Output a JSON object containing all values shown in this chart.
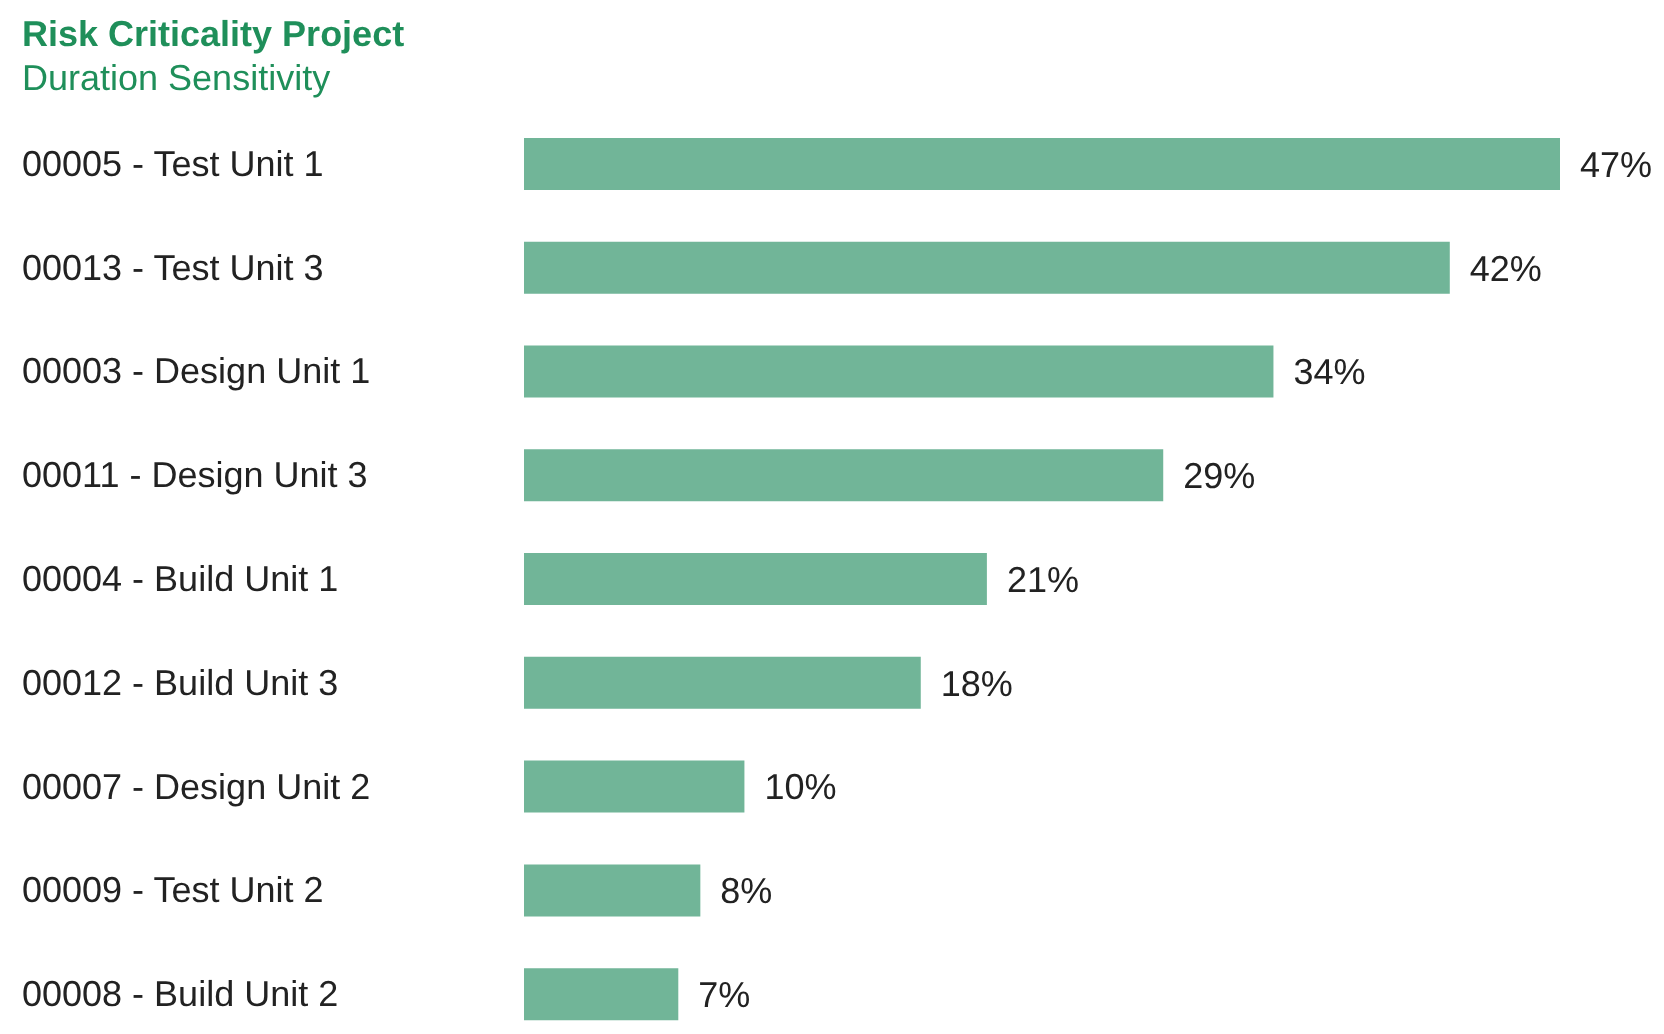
{
  "chart_data": {
    "type": "bar",
    "orientation": "horizontal",
    "title": "Risk Criticality Project",
    "subtitle": "Duration Sensitivity",
    "categories": [
      "00005 - Test Unit 1",
      "00013 - Test Unit 3",
      "00003 - Design Unit 1",
      "00011 - Design Unit 3",
      "00004 - Build Unit 1",
      "00012 - Build Unit 3",
      "00007 - Design Unit 2",
      "00009 - Test Unit 2",
      "00008 - Build Unit 2"
    ],
    "values": [
      47,
      42,
      34,
      29,
      21,
      18,
      10,
      8,
      7
    ],
    "value_labels": [
      "47%",
      "42%",
      "34%",
      "29%",
      "21%",
      "18%",
      "10%",
      "8%",
      "7%"
    ],
    "color": "#71b598"
  }
}
